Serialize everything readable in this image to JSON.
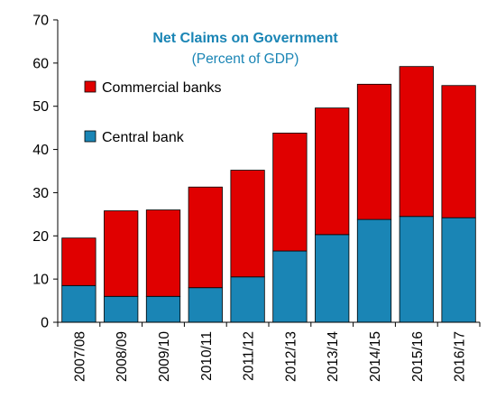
{
  "chart_data": {
    "type": "bar",
    "stacked": true,
    "title": "Net Claims on Government",
    "subtitle": "(Percent of GDP)",
    "categories": [
      "2007/08",
      "2008/09",
      "2009/10",
      "2010/11",
      "2011/12",
      "2012/13",
      "2013/14",
      "2014/15",
      "2015/16",
      "2016/17"
    ],
    "series": [
      {
        "name": "Central bank",
        "color": "#1a85b5",
        "values": [
          8.5,
          6.0,
          6.0,
          8.0,
          10.5,
          16.5,
          20.3,
          23.8,
          24.5,
          24.2
        ]
      },
      {
        "name": "Commercial banks",
        "color": "#e00000",
        "values": [
          11.0,
          19.8,
          20.0,
          23.3,
          24.7,
          27.3,
          29.3,
          31.3,
          34.7,
          30.6
        ]
      }
    ],
    "ylim": [
      0,
      70
    ],
    "yticks": [
      0,
      10,
      20,
      30,
      40,
      50,
      60,
      70
    ],
    "xlabel": "",
    "ylabel": "",
    "grid": false,
    "legend_position": "top-left",
    "title_color": "#1a85b5",
    "subtitle_color": "#1a85b5"
  }
}
